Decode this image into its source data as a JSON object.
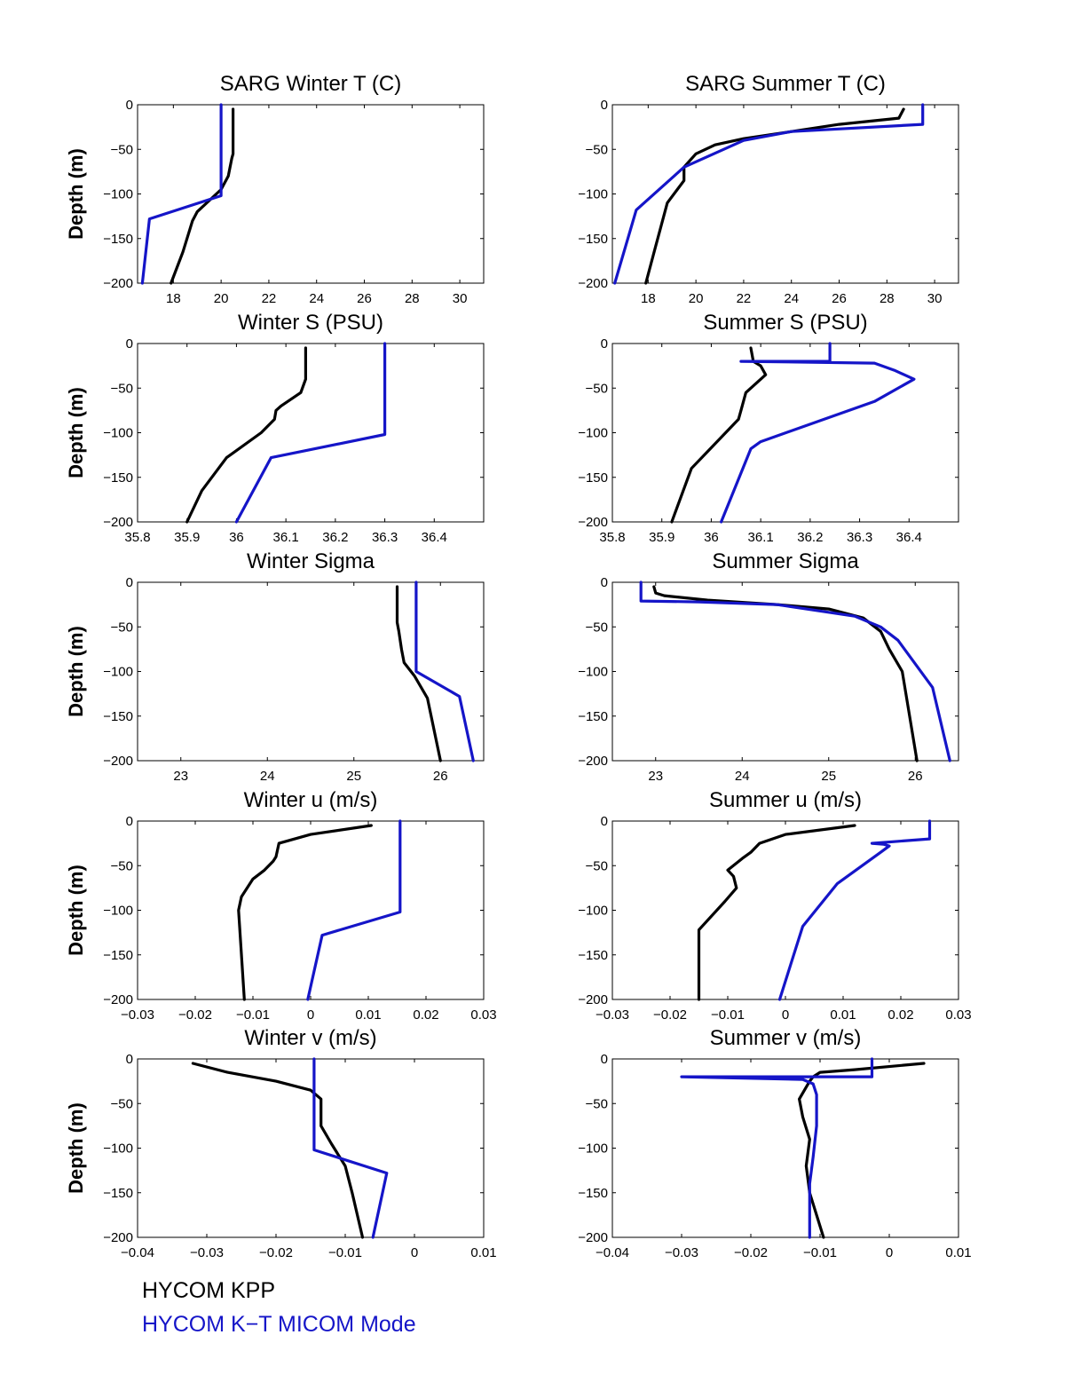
{
  "colors": {
    "series_kpp": "#000000",
    "series_kt": "#1515c8",
    "axes": "#000000"
  },
  "legend": {
    "kpp": "HYCOM KPP",
    "kt": "HYCOM K−T MICOM Mode"
  },
  "chart_data": [
    {
      "type": "line",
      "title": "SARG Winter T (C)",
      "ylabel": "Depth (m)",
      "xlim": [
        16.5,
        31
      ],
      "ylim": [
        -200,
        0
      ],
      "xticks": [
        18,
        20,
        22,
        24,
        26,
        28,
        30
      ],
      "xtick_labels": [
        "18",
        "20",
        "22",
        "24",
        "26",
        "28",
        "30"
      ],
      "yticks": [
        0,
        -50,
        -100,
        -150,
        -200
      ],
      "ytick_labels": [
        "0",
        "−50",
        "−100",
        "−150",
        "−200"
      ],
      "series": [
        {
          "name": "HYCOM KPP",
          "x": [
            20.5,
            20.5,
            20.5,
            20.45,
            20.3,
            20.0,
            19.6,
            19.0,
            18.8,
            18.4,
            17.9
          ],
          "y": [
            -5,
            -25,
            -55,
            -60,
            -80,
            -95,
            -105,
            -120,
            -130,
            -165,
            -200
          ]
        },
        {
          "name": "HYCOM K−T MICOM Mode",
          "x": [
            20.0,
            20.0,
            20.0,
            17.0,
            16.7
          ],
          "y": [
            0,
            -55,
            -102,
            -128,
            -200
          ]
        }
      ]
    },
    {
      "type": "line",
      "title": "SARG Summer T (C)",
      "ylabel": "",
      "xlim": [
        16.5,
        31
      ],
      "ylim": [
        -200,
        0
      ],
      "xticks": [
        18,
        20,
        22,
        24,
        26,
        28,
        30
      ],
      "xtick_labels": [
        "18",
        "20",
        "22",
        "24",
        "26",
        "28",
        "30"
      ],
      "yticks": [
        0,
        -50,
        -100,
        -150,
        -200
      ],
      "ytick_labels": [
        "0",
        "−50",
        "−100",
        "−150",
        "−200"
      ],
      "series": [
        {
          "name": "HYCOM KPP",
          "x": [
            28.7,
            28.5,
            26.0,
            24.0,
            22.0,
            20.8,
            20.0,
            19.5,
            19.5,
            18.8,
            18.3,
            17.9
          ],
          "y": [
            -5,
            -15,
            -22,
            -30,
            -38,
            -45,
            -55,
            -70,
            -85,
            -110,
            -160,
            -200
          ]
        },
        {
          "name": "HYCOM K−T MICOM Mode",
          "x": [
            29.5,
            29.5,
            24.0,
            22.0,
            19.5,
            17.5,
            16.6
          ],
          "y": [
            0,
            -22,
            -30,
            -40,
            -70,
            -118,
            -200
          ]
        }
      ]
    },
    {
      "type": "line",
      "title": "Winter S (PSU)",
      "ylabel": "Depth (m)",
      "xlim": [
        35.8,
        36.5
      ],
      "ylim": [
        -200,
        0
      ],
      "xticks": [
        35.8,
        35.9,
        36,
        36.1,
        36.2,
        36.3,
        36.4
      ],
      "xtick_labels": [
        "35.8",
        "35.9",
        "36",
        "36.1",
        "36.2",
        "36.3",
        "36.4"
      ],
      "yticks": [
        0,
        -50,
        -100,
        -150,
        -200
      ],
      "ytick_labels": [
        "0",
        "−50",
        "−100",
        "−150",
        "−200"
      ],
      "series": [
        {
          "name": "HYCOM KPP",
          "x": [
            36.14,
            36.14,
            36.13,
            36.09,
            36.08,
            36.077,
            36.05,
            35.98,
            35.93,
            35.9
          ],
          "y": [
            -5,
            -40,
            -55,
            -70,
            -75,
            -85,
            -100,
            -128,
            -165,
            -200
          ]
        },
        {
          "name": "HYCOM K−T MICOM Mode",
          "x": [
            36.3,
            36.3,
            36.07,
            36.0
          ],
          "y": [
            0,
            -102,
            -128,
            -200
          ]
        }
      ]
    },
    {
      "type": "line",
      "title": "Summer S (PSU)",
      "ylabel": "",
      "xlim": [
        35.8,
        36.5
      ],
      "ylim": [
        -200,
        0
      ],
      "xticks": [
        35.8,
        35.9,
        36,
        36.1,
        36.2,
        36.3,
        36.4
      ],
      "xtick_labels": [
        "35.8",
        "35.9",
        "36",
        "36.1",
        "36.2",
        "36.3",
        "36.4"
      ],
      "yticks": [
        0,
        -50,
        -100,
        -150,
        -200
      ],
      "ytick_labels": [
        "0",
        "−50",
        "−100",
        "−150",
        "−200"
      ],
      "series": [
        {
          "name": "HYCOM KPP",
          "x": [
            36.08,
            36.085,
            36.1,
            36.11,
            36.07,
            36.06,
            36.055,
            35.96,
            35.92
          ],
          "y": [
            -5,
            -20,
            -25,
            -35,
            -55,
            -75,
            -85,
            -140,
            -200
          ]
        },
        {
          "name": "HYCOM K−T MICOM Mode",
          "x": [
            36.24,
            36.24,
            36.06,
            36.33,
            36.37,
            36.41,
            36.33,
            36.1,
            36.08,
            36.02
          ],
          "y": [
            0,
            -20,
            -20,
            -22,
            -30,
            -40,
            -65,
            -110,
            -118,
            -200
          ]
        }
      ]
    },
    {
      "type": "line",
      "title": "Winter Sigma",
      "ylabel": "Depth (m)",
      "xlim": [
        22.5,
        26.5
      ],
      "ylim": [
        -200,
        0
      ],
      "xticks": [
        23,
        24,
        25,
        26
      ],
      "xtick_labels": [
        "23",
        "24",
        "25",
        "26"
      ],
      "yticks": [
        0,
        -50,
        -100,
        -150,
        -200
      ],
      "ytick_labels": [
        "0",
        "−50",
        "−100",
        "−150",
        "−200"
      ],
      "series": [
        {
          "name": "HYCOM KPP",
          "x": [
            25.5,
            25.5,
            25.52,
            25.55,
            25.58,
            25.7,
            25.85,
            26.0
          ],
          "y": [
            -5,
            -45,
            -55,
            -75,
            -90,
            -105,
            -130,
            -200
          ]
        },
        {
          "name": "HYCOM K−T MICOM Mode",
          "x": [
            25.72,
            25.72,
            25.72,
            26.22,
            26.38
          ],
          "y": [
            0,
            -50,
            -100,
            -128,
            -200
          ]
        }
      ]
    },
    {
      "type": "line",
      "title": "Summer Sigma",
      "ylabel": "",
      "xlim": [
        22.5,
        26.5
      ],
      "ylim": [
        -200,
        0
      ],
      "xticks": [
        23,
        24,
        25,
        26
      ],
      "xtick_labels": [
        "23",
        "24",
        "25",
        "26"
      ],
      "yticks": [
        0,
        -50,
        -100,
        -150,
        -200
      ],
      "ytick_labels": [
        "0",
        "−50",
        "−100",
        "−150",
        "−200"
      ],
      "series": [
        {
          "name": "HYCOM KPP",
          "x": [
            22.98,
            23.0,
            23.1,
            23.6,
            24.4,
            25.0,
            25.4,
            25.6,
            25.7,
            25.85,
            26.02
          ],
          "y": [
            -5,
            -12,
            -15,
            -20,
            -25,
            -30,
            -40,
            -55,
            -75,
            -100,
            -200
          ]
        },
        {
          "name": "HYCOM K−T MICOM Mode",
          "x": [
            22.83,
            22.83,
            23.5,
            24.4,
            25.3,
            25.6,
            25.8,
            26.2,
            26.4
          ],
          "y": [
            0,
            -21,
            -22,
            -25,
            -38,
            -50,
            -65,
            -118,
            -200
          ]
        }
      ]
    },
    {
      "type": "line",
      "title": "Winter u (m/s)",
      "ylabel": "Depth (m)",
      "xlim": [
        -0.03,
        0.03
      ],
      "ylim": [
        -200,
        0
      ],
      "xticks": [
        -0.03,
        -0.02,
        -0.01,
        0,
        0.01,
        0.02,
        0.03
      ],
      "xtick_labels": [
        "−0.03",
        "−0.02",
        "−0.01",
        "0",
        "0.01",
        "0.02",
        "0.03"
      ],
      "yticks": [
        0,
        -50,
        -100,
        -150,
        -200
      ],
      "ytick_labels": [
        "0",
        "−50",
        "−100",
        "−150",
        "−200"
      ],
      "series": [
        {
          "name": "HYCOM KPP",
          "x": [
            0.0105,
            0.0,
            -0.0055,
            -0.006,
            -0.0065,
            -0.008,
            -0.01,
            -0.012,
            -0.0125,
            -0.0115
          ],
          "y": [
            -5,
            -15,
            -25,
            -40,
            -45,
            -55,
            -65,
            -85,
            -100,
            -200
          ]
        },
        {
          "name": "HYCOM K−T MICOM Mode",
          "x": [
            0.0155,
            0.0155,
            0.0155,
            0.002,
            -0.0005
          ],
          "y": [
            0,
            -50,
            -102,
            -128,
            -200
          ]
        }
      ]
    },
    {
      "type": "line",
      "title": "Summer u (m/s)",
      "ylabel": "",
      "xlim": [
        -0.03,
        0.03
      ],
      "ylim": [
        -200,
        0
      ],
      "xticks": [
        -0.03,
        -0.02,
        -0.01,
        0,
        0.01,
        0.02,
        0.03
      ],
      "xtick_labels": [
        "−0.03",
        "−0.02",
        "−0.01",
        "0",
        "0.01",
        "0.02",
        "0.03"
      ],
      "yticks": [
        0,
        -50,
        -100,
        -150,
        -200
      ],
      "ytick_labels": [
        "0",
        "−50",
        "−100",
        "−150",
        "−200"
      ],
      "series": [
        {
          "name": "HYCOM KPP",
          "x": [
            0.012,
            0.0,
            -0.0045,
            -0.006,
            -0.0075,
            -0.01,
            -0.009,
            -0.0085,
            -0.0105,
            -0.015,
            -0.015
          ],
          "y": [
            -5,
            -15,
            -25,
            -35,
            -42,
            -55,
            -62,
            -75,
            -90,
            -122,
            -200
          ]
        },
        {
          "name": "HYCOM K−T MICOM Mode",
          "x": [
            0.025,
            0.025,
            0.015,
            0.017,
            0.018,
            0.0165,
            0.009,
            0.003,
            -0.001
          ],
          "y": [
            0,
            -20,
            -25,
            -26,
            -28,
            -35,
            -70,
            -118,
            -200
          ]
        }
      ]
    },
    {
      "type": "line",
      "title": "Winter v (m/s)",
      "ylabel": "Depth (m)",
      "xlim": [
        -0.04,
        0.01
      ],
      "ylim": [
        -200,
        0
      ],
      "xticks": [
        -0.04,
        -0.03,
        -0.02,
        -0.01,
        0,
        0.01
      ],
      "xtick_labels": [
        "−0.04",
        "−0.03",
        "−0.02",
        "−0.01",
        "0",
        "0.01"
      ],
      "yticks": [
        0,
        -50,
        -100,
        -150,
        -200
      ],
      "ytick_labels": [
        "0",
        "−50",
        "−100",
        "−150",
        "−200"
      ],
      "series": [
        {
          "name": "HYCOM KPP",
          "x": [
            -0.032,
            -0.027,
            -0.02,
            -0.015,
            -0.0135,
            -0.0135,
            -0.0135,
            -0.012,
            -0.01,
            -0.009,
            -0.0075
          ],
          "y": [
            -5,
            -15,
            -25,
            -35,
            -45,
            -55,
            -75,
            -95,
            -120,
            -150,
            -200
          ]
        },
        {
          "name": "HYCOM K−T MICOM Mode",
          "x": [
            -0.0145,
            -0.0145,
            -0.0145,
            -0.004,
            -0.006
          ],
          "y": [
            0,
            -50,
            -102,
            -128,
            -200
          ]
        }
      ]
    },
    {
      "type": "line",
      "title": "Summer v (m/s)",
      "ylabel": "",
      "xlim": [
        -0.04,
        0.01
      ],
      "ylim": [
        -200,
        0
      ],
      "xticks": [
        -0.04,
        -0.03,
        -0.02,
        -0.01,
        0,
        0.01
      ],
      "xtick_labels": [
        "−0.04",
        "−0.03",
        "−0.02",
        "−0.01",
        "0",
        "0.01"
      ],
      "yticks": [
        0,
        -50,
        -100,
        -150,
        -200
      ],
      "ytick_labels": [
        "0",
        "−50",
        "−100",
        "−150",
        "−200"
      ],
      "series": [
        {
          "name": "HYCOM KPP",
          "x": [
            0.005,
            -0.005,
            -0.01,
            -0.011,
            -0.0115,
            -0.013,
            -0.0125,
            -0.0115,
            -0.012,
            -0.0115,
            -0.0095
          ],
          "y": [
            -5,
            -12,
            -15,
            -20,
            -25,
            -45,
            -65,
            -90,
            -120,
            -150,
            -200
          ]
        },
        {
          "name": "HYCOM K−T MICOM Mode",
          "x": [
            -0.0025,
            -0.0025,
            -0.03,
            -0.0125,
            -0.011,
            -0.0105,
            -0.0105,
            -0.011,
            -0.0115,
            -0.0115
          ],
          "y": [
            0,
            -20,
            -20,
            -23,
            -28,
            -40,
            -75,
            -110,
            -140,
            -200
          ]
        }
      ]
    }
  ]
}
